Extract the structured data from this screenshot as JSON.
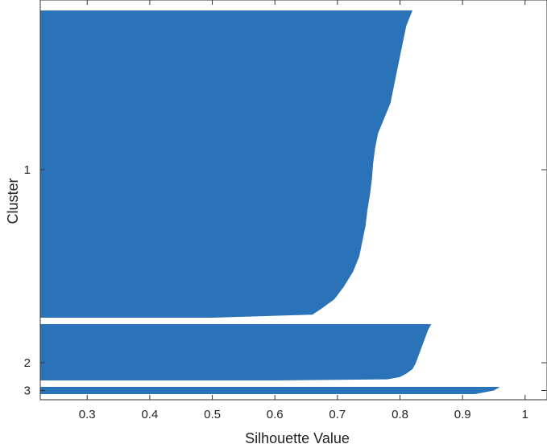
{
  "chart_data": {
    "type": "bar",
    "orientation": "horizontal",
    "subtype": "silhouette",
    "xlabel": "Silhouette Value",
    "ylabel": "Cluster",
    "xlim": [
      0.225,
      1.035
    ],
    "xticks": [
      "0.3",
      "0.4",
      "0.5",
      "0.6",
      "0.7",
      "0.8",
      "0.9",
      "1"
    ],
    "grid": false,
    "bar_color": "#2a73b8",
    "clusters": [
      {
        "label": "1",
        "profile": [
          [
            0.0,
            0.82
          ],
          [
            0.05,
            0.81
          ],
          [
            0.1,
            0.805
          ],
          [
            0.15,
            0.8
          ],
          [
            0.2,
            0.795
          ],
          [
            0.25,
            0.79
          ],
          [
            0.3,
            0.785
          ],
          [
            0.35,
            0.775
          ],
          [
            0.4,
            0.765
          ],
          [
            0.45,
            0.76
          ],
          [
            0.5,
            0.757
          ],
          [
            0.55,
            0.755
          ],
          [
            0.6,
            0.752
          ],
          [
            0.65,
            0.748
          ],
          [
            0.7,
            0.745
          ],
          [
            0.75,
            0.74
          ],
          [
            0.8,
            0.735
          ],
          [
            0.85,
            0.725
          ],
          [
            0.9,
            0.71
          ],
          [
            0.94,
            0.695
          ],
          [
            0.97,
            0.675
          ],
          [
            0.99,
            0.66
          ],
          [
            1.0,
            0.5
          ]
        ]
      },
      {
        "label": "2",
        "profile": [
          [
            0.0,
            0.85
          ],
          [
            0.1,
            0.845
          ],
          [
            0.25,
            0.84
          ],
          [
            0.4,
            0.835
          ],
          [
            0.55,
            0.83
          ],
          [
            0.7,
            0.825
          ],
          [
            0.8,
            0.82
          ],
          [
            0.88,
            0.81
          ],
          [
            0.94,
            0.8
          ],
          [
            0.98,
            0.78
          ],
          [
            1.0,
            0.6
          ]
        ]
      },
      {
        "label": "3",
        "profile": [
          [
            0.0,
            0.96
          ],
          [
            0.5,
            0.95
          ],
          [
            1.0,
            0.92
          ]
        ]
      }
    ]
  }
}
